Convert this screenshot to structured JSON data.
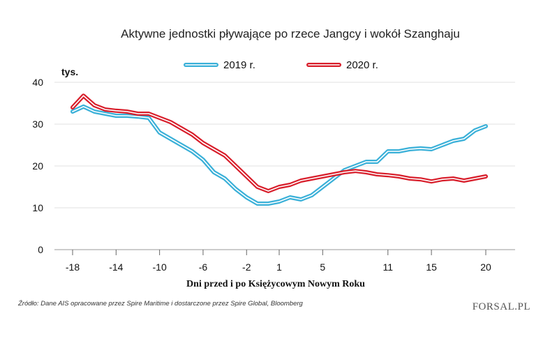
{
  "chart_data": {
    "type": "line",
    "title": "Aktywne jednostki pływające po rzece Jangcy i wokół Szanghaju",
    "unit_label": "tys.",
    "xlabel": "Dni przed i po Księżycowym Nowym Roku",
    "ylabel": "",
    "xlim": [
      -18,
      20
    ],
    "ylim": [
      0,
      40
    ],
    "x_ticks": [
      -18,
      -14,
      -10,
      -6,
      -2,
      1,
      5,
      11,
      15,
      20
    ],
    "y_ticks": [
      0,
      10,
      20,
      30,
      40
    ],
    "grid": "horizontal",
    "legend_position": "top",
    "series": [
      {
        "name": "2019 r.",
        "color": "#3ab0d8",
        "x": [
          -18,
          -17,
          -16,
          -15,
          -14,
          -13,
          -12,
          -11,
          -10,
          -9,
          -8,
          -7,
          -6,
          -5,
          -4,
          -3,
          -2,
          -1,
          0,
          1,
          2,
          3,
          4,
          5,
          6,
          7,
          8,
          9,
          10,
          11,
          12,
          13,
          14,
          15,
          16,
          17,
          18,
          19,
          20
        ],
        "values": [
          33,
          34.2,
          33,
          32.5,
          32,
          32,
          31.8,
          31.5,
          28,
          26.5,
          25,
          23.5,
          21.5,
          18.5,
          17,
          14.5,
          12.5,
          11,
          11,
          11.5,
          12.5,
          12,
          13,
          15,
          17,
          19,
          20,
          21,
          21,
          23.5,
          23.5,
          24,
          24.2,
          24,
          25,
          26,
          26.5,
          28.5,
          29.5
        ]
      },
      {
        "name": "2020 r.",
        "color": "#d81e2b",
        "x": [
          -18,
          -17,
          -16,
          -15,
          -14,
          -13,
          -12,
          -11,
          -10,
          -9,
          -8,
          -7,
          -6,
          -5,
          -4,
          -3,
          -2,
          -1,
          0,
          1,
          2,
          3,
          4,
          5,
          6,
          7,
          8,
          9,
          10,
          11,
          12,
          13,
          14,
          15,
          16,
          17,
          18,
          19,
          20
        ],
        "values": [
          34,
          36.8,
          34.5,
          33.5,
          33.2,
          33,
          32.5,
          32.5,
          31.5,
          30.5,
          29,
          27.5,
          25.5,
          24,
          22.5,
          20,
          17.5,
          15,
          14,
          15,
          15.5,
          16.5,
          17,
          17.5,
          18,
          18.5,
          18.8,
          18.5,
          18,
          17.8,
          17.5,
          17,
          16.8,
          16.3,
          16.8,
          17,
          16.5,
          17,
          17.5
        ]
      }
    ]
  },
  "source": "Źródło: Dane AIS opracowane przez Spire Maritime i dostarczone przez Spire Global, Bloomberg",
  "brand": "FORSAL.PL"
}
